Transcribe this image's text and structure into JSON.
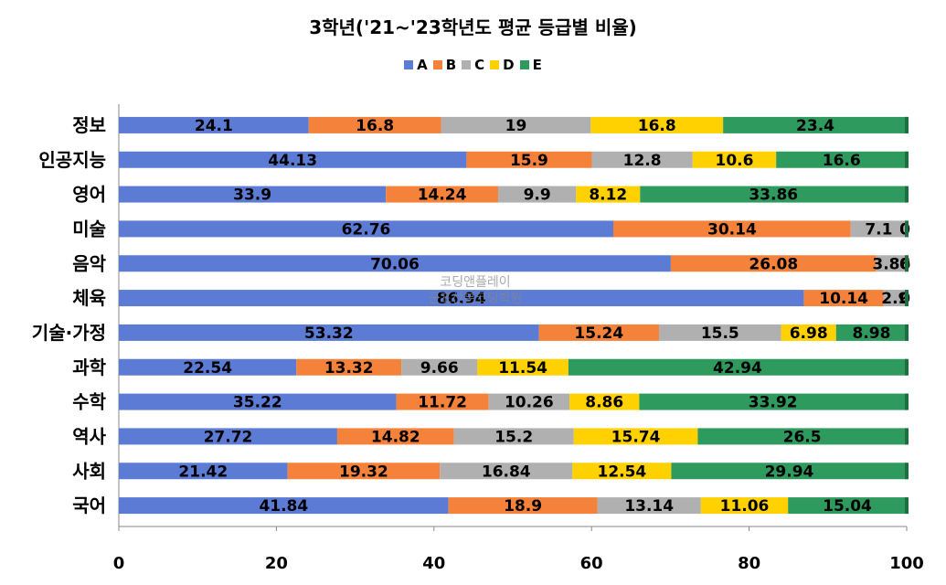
{
  "chart_data": {
    "type": "bar",
    "orientation": "horizontal",
    "stacked": true,
    "title": "3학년('21~'23학년도 평균 등급별 비율)",
    "categories": [
      "정보",
      "인공지능",
      "영어",
      "미술",
      "음악",
      "체육",
      "기술·가정",
      "과학",
      "수학",
      "역사",
      "사회",
      "국어"
    ],
    "series": [
      {
        "name": "A",
        "color": "#5b7bd5",
        "values": [
          24.1,
          44.13,
          33.9,
          62.76,
          70.06,
          86.94,
          53.32,
          22.54,
          35.22,
          27.72,
          21.42,
          41.84
        ]
      },
      {
        "name": "B",
        "color": "#f5823a",
        "values": [
          16.8,
          15.9,
          14.24,
          30.14,
          26.08,
          10.14,
          15.24,
          13.32,
          11.72,
          14.82,
          19.32,
          18.9
        ]
      },
      {
        "name": "C",
        "color": "#b0b0b0",
        "values": [
          19,
          12.8,
          9.9,
          7.1,
          3.86,
          2.9,
          15.5,
          9.66,
          10.26,
          15.2,
          16.84,
          13.14
        ]
      },
      {
        "name": "D",
        "color": "#ffd100",
        "values": [
          16.8,
          10.6,
          8.12,
          0,
          0,
          0,
          6.98,
          11.54,
          8.86,
          15.74,
          12.54,
          11.06
        ]
      },
      {
        "name": "E",
        "color": "#2e9a5e",
        "values": [
          23.4,
          16.6,
          33.86,
          0,
          0,
          0,
          8.98,
          42.94,
          33.92,
          26.5,
          29.94,
          15.04
        ]
      }
    ],
    "xlim": [
      0,
      100
    ],
    "xticks": [
      0,
      20,
      40,
      60,
      80,
      100
    ],
    "legend_position": "top",
    "grid": false
  },
  "watermark": {
    "line1": "코딩앤플레이",
    "line2": "군포산본코딩학원"
  }
}
